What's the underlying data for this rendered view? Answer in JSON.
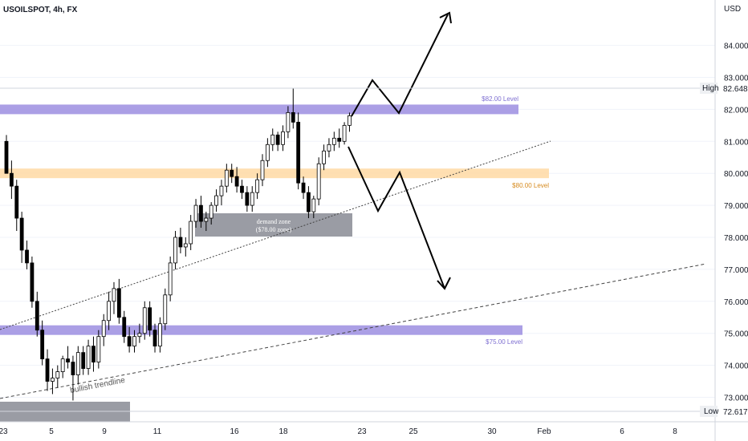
{
  "header": {
    "symbol_title": "USOILSPOT, 4h, FX"
  },
  "chart_data": {
    "type": "candlestick",
    "currency_label": "USD",
    "y_ticks": [
      "84.000",
      "83.000",
      "82.000",
      "81.000",
      "80.000",
      "79.000",
      "78.000",
      "77.000",
      "76.000",
      "75.000",
      "74.000",
      "73.000"
    ],
    "y_tick_values": [
      84,
      83,
      82,
      81,
      80,
      79,
      78,
      77,
      76,
      75,
      74,
      73
    ],
    "x_ticks": [
      "23",
      "5",
      "9",
      "11",
      "16",
      "18",
      "23",
      "25",
      "30",
      "Feb",
      "6",
      "8"
    ],
    "high_marker": {
      "label": "High",
      "value": 82.648,
      "value_text": "82.648"
    },
    "low_marker": {
      "label": "Low",
      "value": 72.617,
      "value_text": "72.617"
    },
    "levels": [
      {
        "label": "$82.00 Level",
        "from": 81.85,
        "to": 82.15,
        "color": "#9c8ee0"
      },
      {
        "label": "$80.00 Level",
        "from": 79.85,
        "to": 80.15,
        "color": "#ffd9a3"
      },
      {
        "label": "$75.00 Level",
        "from": 74.95,
        "to": 75.25,
        "color": "#9c8ee0"
      }
    ],
    "zones": [
      {
        "label_line1": "demand zone",
        "label_line2": "($78.00 zone)"
      }
    ],
    "annotations": {
      "trendline_label": "bullish trendline"
    },
    "candles": [
      [
        81.0,
        81.2,
        80.0,
        80.0
      ],
      [
        80.0,
        80.4,
        79.2,
        79.6
      ],
      [
        79.6,
        79.8,
        78.2,
        78.6
      ],
      [
        78.6,
        78.8,
        77.2,
        77.6
      ],
      [
        77.6,
        77.9,
        77.0,
        77.2
      ],
      [
        77.2,
        77.4,
        75.8,
        76.0
      ],
      [
        76.0,
        76.3,
        74.9,
        75.1
      ],
      [
        75.1,
        75.4,
        74.0,
        74.2
      ],
      [
        74.2,
        74.5,
        73.2,
        73.5
      ],
      [
        73.5,
        73.9,
        73.1,
        73.6
      ],
      [
        73.6,
        74.0,
        73.3,
        73.8
      ],
      [
        73.8,
        74.3,
        73.6,
        74.2
      ],
      [
        74.2,
        74.6,
        73.9,
        74.1
      ],
      [
        74.1,
        74.3,
        72.9,
        73.7
      ],
      [
        73.7,
        74.6,
        73.4,
        74.4
      ],
      [
        74.4,
        74.6,
        73.7,
        73.9
      ],
      [
        73.9,
        74.8,
        73.7,
        74.6
      ],
      [
        74.6,
        74.9,
        73.8,
        74.1
      ],
      [
        74.1,
        75.1,
        73.9,
        74.9
      ],
      [
        74.9,
        75.6,
        74.6,
        75.4
      ],
      [
        75.4,
        76.3,
        75.1,
        76.0
      ],
      [
        76.0,
        76.6,
        75.6,
        76.4
      ],
      [
        76.4,
        76.7,
        75.3,
        75.5
      ],
      [
        75.5,
        75.7,
        74.7,
        74.9
      ],
      [
        74.9,
        75.2,
        74.4,
        74.6
      ],
      [
        74.6,
        75.1,
        74.4,
        74.9
      ],
      [
        74.9,
        75.3,
        74.7,
        75.0
      ],
      [
        75.0,
        76.0,
        74.8,
        75.8
      ],
      [
        75.8,
        76.0,
        74.9,
        75.1
      ],
      [
        75.1,
        75.3,
        74.4,
        74.6
      ],
      [
        74.6,
        75.5,
        74.4,
        75.3
      ],
      [
        75.3,
        76.4,
        75.1,
        76.2
      ],
      [
        76.2,
        77.4,
        76.0,
        77.2
      ],
      [
        77.2,
        78.2,
        77.0,
        78.0
      ],
      [
        78.0,
        78.3,
        77.5,
        77.7
      ],
      [
        77.7,
        78.0,
        77.4,
        77.8
      ],
      [
        77.8,
        78.7,
        77.6,
        78.5
      ],
      [
        78.5,
        79.2,
        78.3,
        79.0
      ],
      [
        79.0,
        79.3,
        78.3,
        78.5
      ],
      [
        78.5,
        78.8,
        78.2,
        78.6
      ],
      [
        78.6,
        79.1,
        78.4,
        79.0
      ],
      [
        79.0,
        79.5,
        78.8,
        79.3
      ],
      [
        79.3,
        79.8,
        79.0,
        79.6
      ],
      [
        79.6,
        80.3,
        79.4,
        80.1
      ],
      [
        80.1,
        80.3,
        79.7,
        79.9
      ],
      [
        79.9,
        80.2,
        79.4,
        79.6
      ],
      [
        79.6,
        79.8,
        79.2,
        79.4
      ],
      [
        79.4,
        79.6,
        78.8,
        79.0
      ],
      [
        79.0,
        79.6,
        78.8,
        79.4
      ],
      [
        79.4,
        80.0,
        79.2,
        79.8
      ],
      [
        79.8,
        80.6,
        79.6,
        80.4
      ],
      [
        80.4,
        81.1,
        80.2,
        80.9
      ],
      [
        80.9,
        81.4,
        80.7,
        81.2
      ],
      [
        81.2,
        81.3,
        80.7,
        80.9
      ],
      [
        80.9,
        81.5,
        80.7,
        81.3
      ],
      [
        81.3,
        82.1,
        81.1,
        81.9
      ],
      [
        81.9,
        82.648,
        81.4,
        81.6
      ],
      [
        81.6,
        81.9,
        79.5,
        79.7
      ],
      [
        79.7,
        79.9,
        79.2,
        79.4
      ],
      [
        79.4,
        79.6,
        78.6,
        78.8
      ],
      [
        78.8,
        79.3,
        78.6,
        79.2
      ],
      [
        79.2,
        80.5,
        79.0,
        80.3
      ],
      [
        80.3,
        80.9,
        80.1,
        80.7
      ],
      [
        80.7,
        81.1,
        80.5,
        80.9
      ],
      [
        80.9,
        81.3,
        80.7,
        81.1
      ],
      [
        81.1,
        81.4,
        80.8,
        81.0
      ],
      [
        81.0,
        81.6,
        80.9,
        81.5
      ],
      [
        81.5,
        81.9,
        81.3,
        81.8
      ]
    ]
  }
}
